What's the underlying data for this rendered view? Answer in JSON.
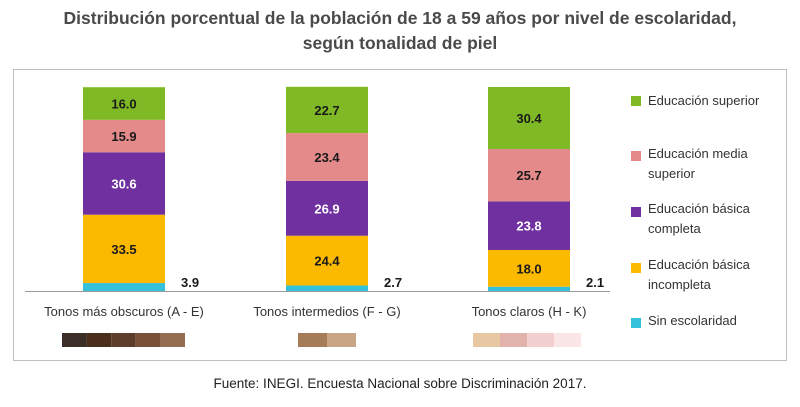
{
  "title": {
    "line1": "Distribución porcentual de la población de 18 a 59 años por nivel de escolaridad,",
    "line2": "según tonalidad de piel"
  },
  "source": "Fuente: INEGI. Encuesta Nacional sobre Discriminación 2017.",
  "chart_data": {
    "type": "bar",
    "stacked": true,
    "unit": "percent",
    "ylim": [
      0,
      100
    ],
    "grid": false,
    "legend_position": "right",
    "categories": [
      "Tonos más obscuros (A - E)",
      "Tonos intermedios (F - G)",
      "Tonos claros (H - K)"
    ],
    "series": [
      {
        "name": "Sin escolaridad",
        "color": "#33c1dc",
        "values": [
          3.9,
          2.7,
          2.1
        ]
      },
      {
        "name": "Educación básica incompleta",
        "color": "#fbb900",
        "values": [
          33.5,
          24.4,
          18.0
        ]
      },
      {
        "name": "Educación básica completa",
        "color": "#7030a0",
        "values": [
          30.6,
          26.9,
          23.8
        ]
      },
      {
        "name": "Educación media superior",
        "color": "#e48a8a",
        "values": [
          15.9,
          23.4,
          25.7
        ]
      },
      {
        "name": "Educación superior",
        "color": "#7fba26",
        "values": [
          16.0,
          22.7,
          30.4
        ]
      }
    ],
    "legend_order": [
      4,
      3,
      2,
      1,
      0
    ],
    "skin_swatches": [
      [
        "#3a2e26",
        "#4c2e1c",
        "#5e3d2a",
        "#7a5039",
        "#936c51"
      ],
      [
        "#a57b58",
        "#c8a584"
      ],
      [
        "#e7c8a3",
        "#e2b3ad",
        "#f1d0cf",
        "#fae6e6"
      ]
    ]
  }
}
